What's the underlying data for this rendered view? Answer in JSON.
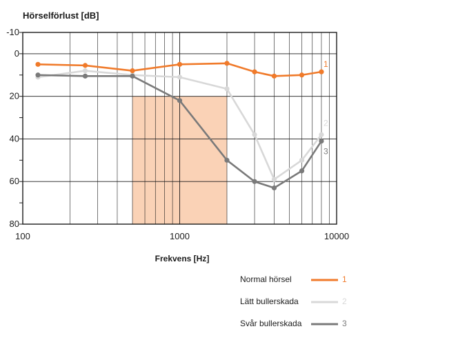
{
  "chart_data": {
    "type": "line",
    "ylabel": "Hörselförlust [dB]",
    "xlabel": "Frekvens [Hz]",
    "x_scale": "log",
    "xlim": [
      100,
      10000
    ],
    "ylim": [
      -10,
      80
    ],
    "y_inverted": true,
    "x_tick_labels": [
      "100",
      "1000",
      "10000"
    ],
    "y_tick_labels": [
      "-10",
      "0",
      "20",
      "40",
      "60",
      "80"
    ],
    "highlight_band": {
      "x": [
        500,
        2000
      ],
      "y": [
        20,
        80
      ],
      "color": "#fad2b6"
    },
    "series": [
      {
        "name": "Normal hörsel",
        "id": "1",
        "color": "#f07a2a",
        "x": [
          125,
          250,
          500,
          1000,
          2000,
          3000,
          4000,
          6000,
          8000
        ],
        "values": [
          5,
          5.5,
          8,
          5,
          4.5,
          8.5,
          10.5,
          10,
          8.5
        ]
      },
      {
        "name": "Lätt bullerskada",
        "id": "2",
        "color": "#d8d8d8",
        "x": [
          125,
          250,
          500,
          1000,
          2000,
          3000,
          4000,
          6000,
          8000
        ],
        "values": [
          11,
          8,
          10,
          11,
          16.5,
          38,
          59,
          50,
          38
        ]
      },
      {
        "name": "Svår bullerskada",
        "id": "3",
        "color": "#7a7a7a",
        "x": [
          125,
          250,
          500,
          1000,
          2000,
          3000,
          4000,
          6000,
          8000
        ],
        "values": [
          10,
          10.5,
          10.5,
          22,
          50,
          60,
          63,
          55,
          41
        ]
      }
    ]
  }
}
